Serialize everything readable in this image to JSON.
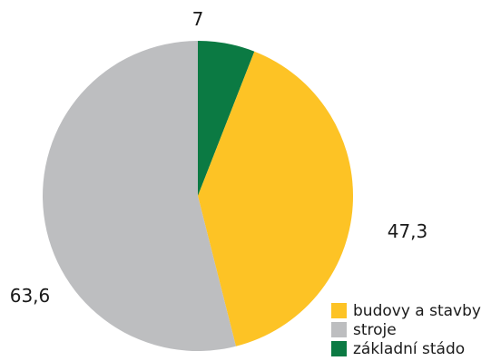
{
  "chart_data": {
    "type": "pie",
    "categories": [
      "budovy a stavby",
      "stroje",
      "základní stádo"
    ],
    "values": [
      47.3,
      63.6,
      7
    ],
    "data_labels": [
      "47,3",
      "63,6",
      "7"
    ],
    "colors": [
      "#FDC325",
      "#BDBEC0",
      "#0B7A43"
    ],
    "start_angle_deg": 0,
    "direction": "clockwise",
    "drawing_order": [
      "základní stádo",
      "budovy a stavby",
      "stroje"
    ],
    "legend": {
      "position": "bottom-right",
      "entries": [
        "budovy a stavby",
        "stroje",
        "základní stádo"
      ]
    }
  }
}
